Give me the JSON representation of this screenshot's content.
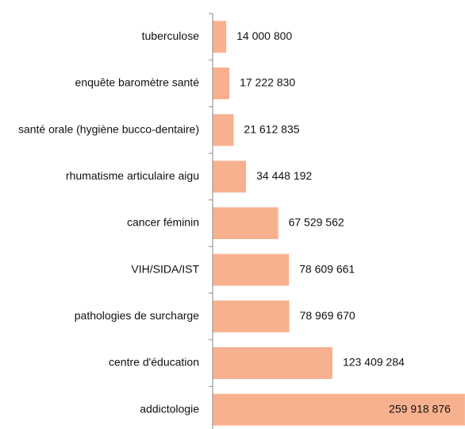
{
  "chart_data": {
    "type": "bar",
    "orientation": "horizontal",
    "categories": [
      "tuberculose",
      "enquête baromètre santé",
      "santé orale (hygiène bucco-dentaire)",
      "rhumatisme articulaire aigu",
      "cancer féminin",
      "VIH/SIDA/IST",
      "pathologies de surcharge",
      "centre d'éducation",
      "addictologie"
    ],
    "values": [
      14000800,
      17222830,
      21612835,
      34448192,
      67529562,
      78609661,
      78969670,
      123409284,
      259918876
    ],
    "value_labels": [
      "14 000 800",
      "17 222 830",
      "21 612 835",
      "34 448 192",
      "67 529 562",
      "78 609 661",
      "78 969 670",
      "123 409 284",
      "259 918 876"
    ],
    "color": "#f8b18f",
    "xlim": [
      0,
      260000000
    ]
  }
}
